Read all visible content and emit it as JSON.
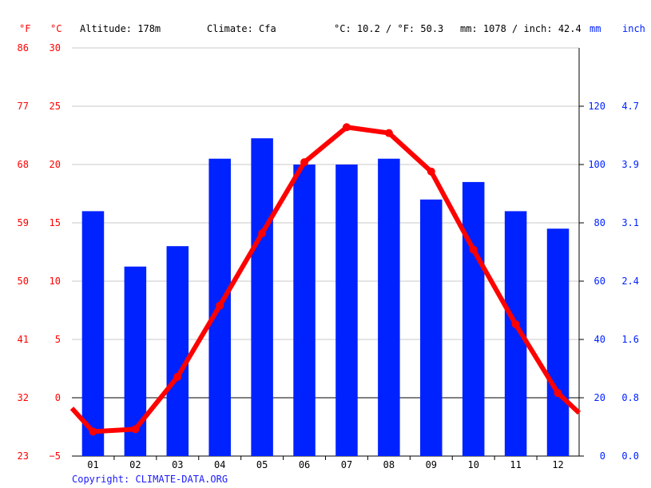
{
  "header": {
    "f_unit": "°F",
    "c_unit": "°C",
    "altitude": "Altitude: 178m",
    "climate": "Climate: Cfa",
    "avg_temp": "°C: 10.2 / °F: 50.3",
    "precip": "mm: 1078 / inch: 42.4",
    "mm_unit": "mm",
    "inch_unit": "inch"
  },
  "axes": {
    "c_ticks": [
      "30",
      "25",
      "20",
      "15",
      "10",
      "5",
      "0",
      "−5"
    ],
    "f_ticks": [
      "86",
      "77",
      "68",
      "59",
      "50",
      "41",
      "32",
      "23"
    ],
    "mm_ticks": [
      "120",
      "100",
      "80",
      "60",
      "40",
      "20",
      "0"
    ],
    "inch_ticks": [
      "4.7",
      "3.9",
      "3.1",
      "2.4",
      "1.6",
      "0.8",
      "0.0"
    ]
  },
  "footer": {
    "copyright": "Copyright: CLIMATE-DATA.ORG"
  },
  "colors": {
    "temperature": "#ff0000",
    "precipitation": "#0022ff",
    "grid": "#c8c8c8"
  },
  "chart_data": {
    "type": "bar",
    "categories": [
      "01",
      "02",
      "03",
      "04",
      "05",
      "06",
      "07",
      "08",
      "09",
      "10",
      "11",
      "12"
    ],
    "series": [
      {
        "values": [
          84,
          65,
          72,
          102,
          109,
          100,
          100,
          102,
          88,
          94,
          84,
          78
        ]
      },
      {
        "values": [
          -2.9,
          -2.7,
          1.8,
          7.9,
          14.1,
          20.2,
          23.2,
          22.7,
          19.4,
          12.7,
          6.3,
          0.4
        ]
      }
    ],
    "temperature_range": {
      "dec_to_jan_edge_start": -0.9,
      "dec_to_jan_edge_end": -1.3
    },
    "ylim_temp_c": [
      -5,
      30
    ],
    "ylim_precip_mm": [
      0,
      140
    ],
    "grid": true
  }
}
